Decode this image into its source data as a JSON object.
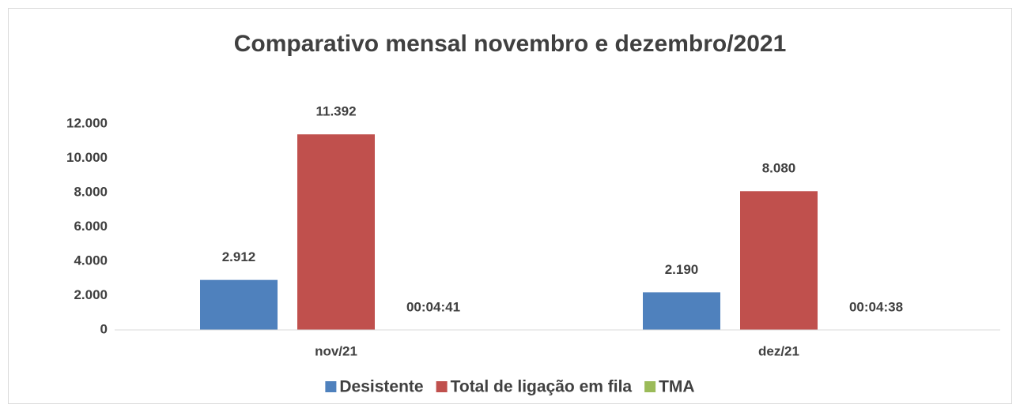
{
  "chart_data": {
    "type": "bar",
    "title": "Comparativo mensal novembro e dezembro/2021",
    "categories": [
      "nov/21",
      "dez/21"
    ],
    "series": [
      {
        "name": "Desistente",
        "color": "#4f81bd",
        "values": [
          2912,
          2190
        ],
        "value_labels": [
          "2.912",
          "2.190"
        ]
      },
      {
        "name": "Total de ligação em fila",
        "color": "#c0504d",
        "values": [
          11392,
          8080
        ],
        "value_labels": [
          "11.392",
          "8.080"
        ]
      },
      {
        "name": "TMA",
        "color": "#9bbb59",
        "values": [
          0.0032523,
          0.0032176
        ],
        "value_labels": [
          "00:04:41",
          "00:04:38"
        ]
      }
    ],
    "ylim": [
      0,
      12000
    ],
    "yticks": [
      0,
      {
        "value": 2000,
        "label": "2.000"
      },
      {
        "value": 4000,
        "label": "4.000"
      },
      {
        "value": 6000,
        "label": "6.000"
      },
      {
        "value": 8000,
        "label": "8.000"
      },
      {
        "value": 10000,
        "label": "10.000"
      },
      {
        "value": 12000,
        "label": "12.000"
      }
    ],
    "grid": false,
    "legend": "bottom"
  }
}
